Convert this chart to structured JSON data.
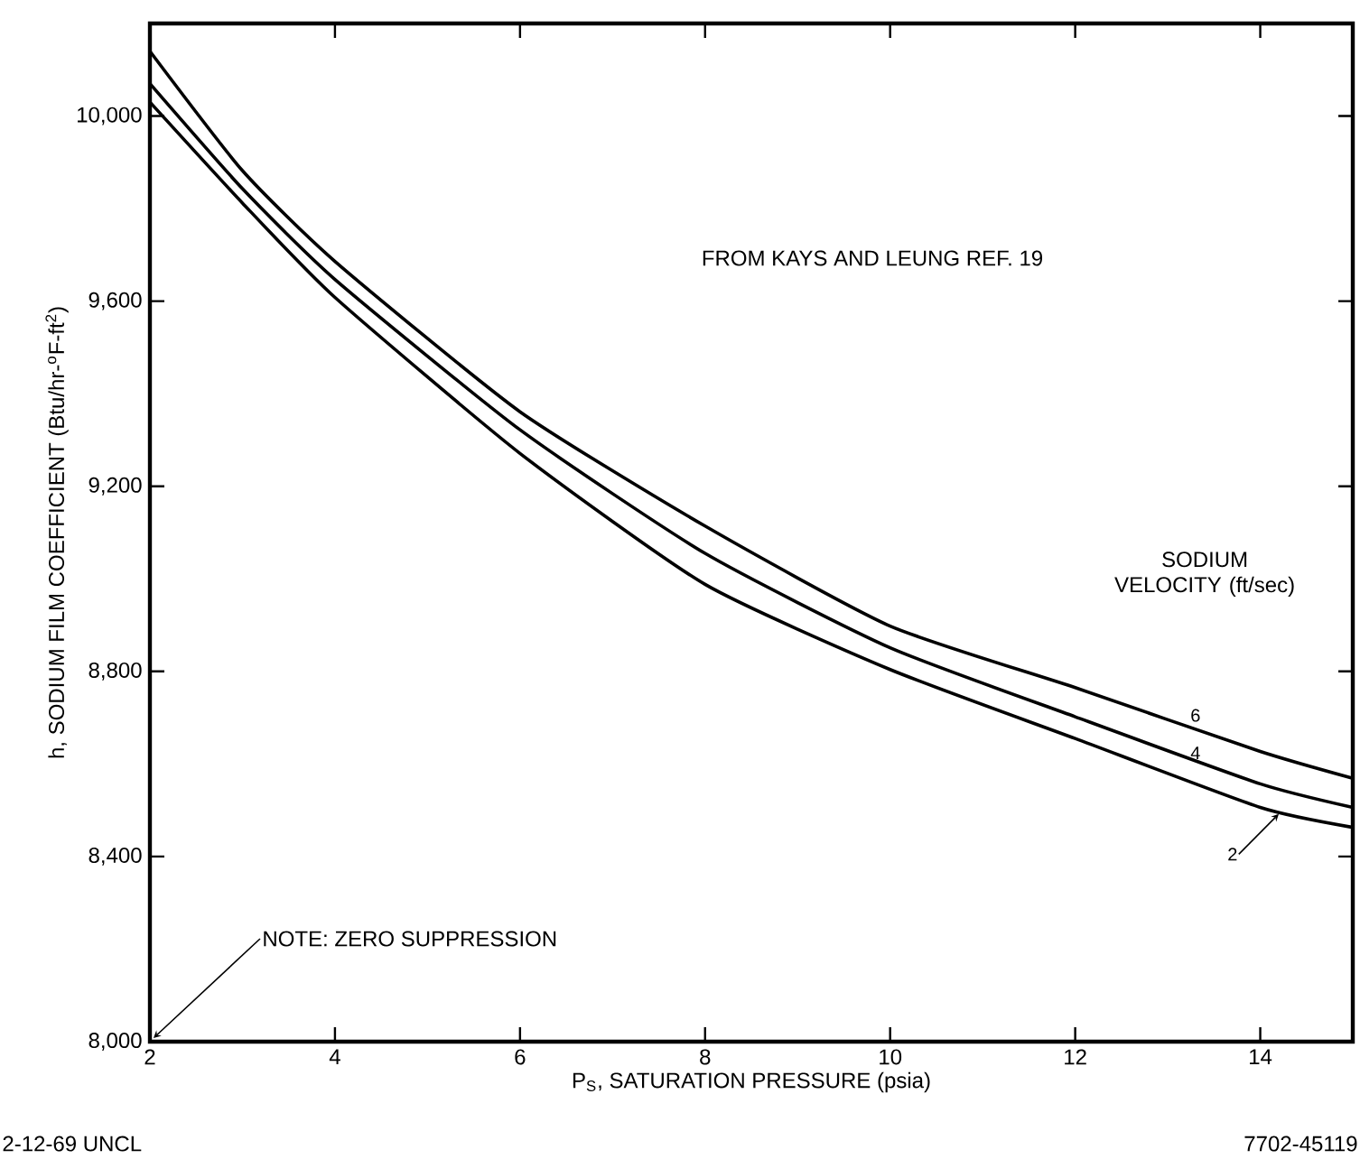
{
  "chart_data": {
    "type": "line",
    "xlabel": "P$_{S}$, SATURATION PRESSURE (psia)",
    "ylabel": "h, SODIUM FILM COEFFICIENT (Btu/hr-$^{o}$F-ft$^{2}$)",
    "legend_title": "SODIUM VELOCITY (ft/sec)",
    "x": [
      2,
      3,
      4,
      6,
      8,
      10,
      12,
      14,
      15
    ],
    "series": [
      {
        "name": "6",
        "color": "#000000",
        "values": [
          10140,
          9882,
          9686,
          9361,
          9114,
          8898,
          8765,
          8627,
          8569
        ]
      },
      {
        "name": "4",
        "color": "#000000",
        "values": [
          10070,
          9843,
          9647,
          9322,
          9055,
          8851,
          8702,
          8557,
          8506
        ]
      },
      {
        "name": "2",
        "color": "#000000",
        "values": [
          10030,
          9812,
          9608,
          9271,
          8988,
          8804,
          8655,
          8506,
          8463
        ]
      }
    ],
    "xlim": [
      2,
      15
    ],
    "ylim": [
      8000,
      10200
    ],
    "xticks": [
      2,
      4,
      6,
      8,
      10,
      12,
      14
    ],
    "yticks": [
      {
        "value": 8000,
        "label": "8,000"
      },
      {
        "value": 8400,
        "label": "8,400"
      },
      {
        "value": 8800,
        "label": "8,800"
      },
      {
        "value": 9200,
        "label": "9,200"
      },
      {
        "value": 9600,
        "label": "9,600"
      },
      {
        "value": 10000,
        "label": "10,000"
      }
    ],
    "marker": "none",
    "line_style": "solid",
    "grid": false,
    "annotations": [
      "FROM KAYS AND LEUNG REF. 19",
      "NOTE:  ZERO SUPPRESSION",
      "2-12-69  UNCL",
      "7702-45119"
    ]
  }
}
